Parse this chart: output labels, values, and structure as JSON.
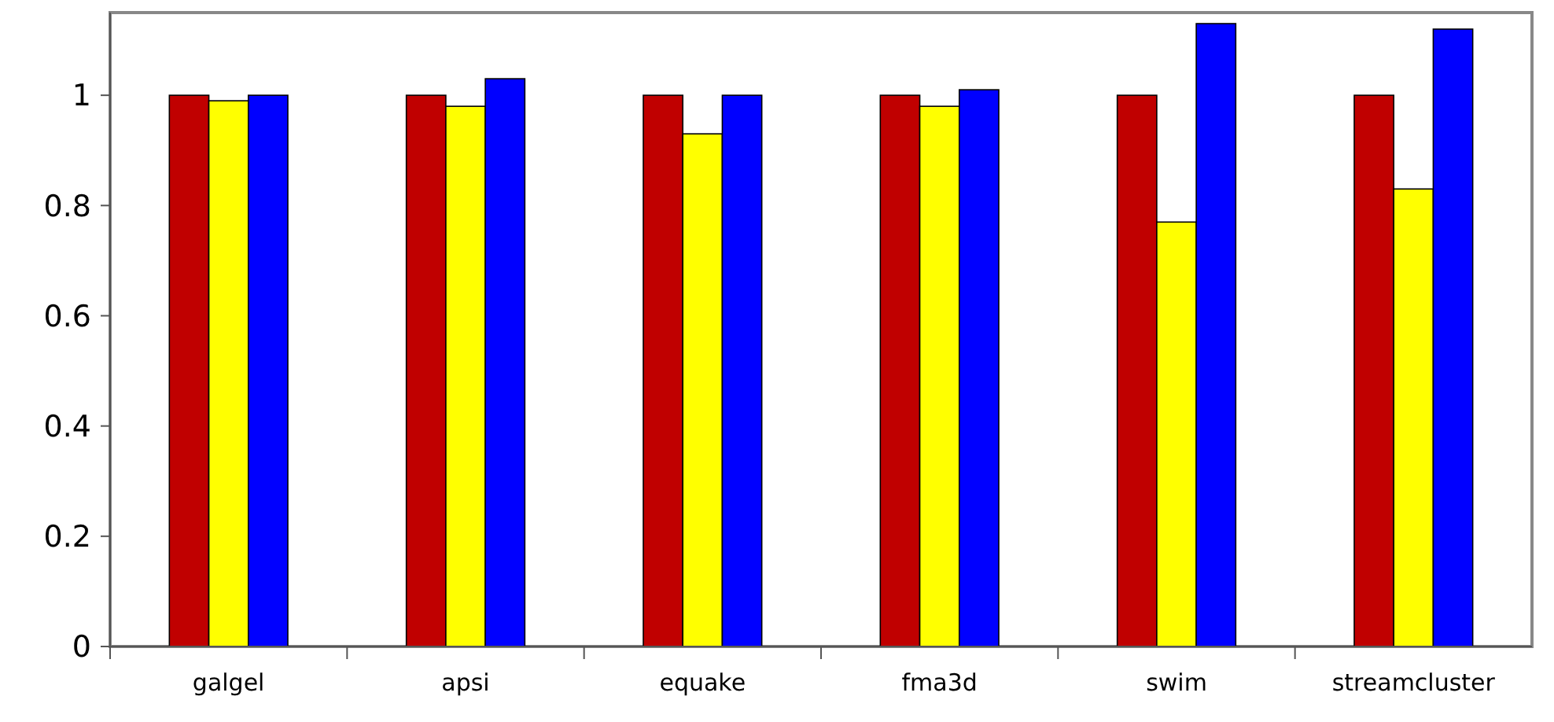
{
  "chart_data": {
    "type": "bar",
    "categories": [
      "galgel",
      "apsi",
      "equake",
      "fma3d",
      "swim",
      "streamcluster"
    ],
    "series": [
      {
        "color": "#c00000",
        "values": [
          1,
          1,
          1,
          1,
          1,
          1
        ]
      },
      {
        "color": "#ffff00",
        "values": [
          0.99,
          0.98,
          0.93,
          0.98,
          0.77,
          0.83
        ]
      },
      {
        "color": "#0000ff",
        "values": [
          1.0,
          1.03,
          1.0,
          1.01,
          1.13,
          1.12
        ]
      }
    ],
    "ylim": [
      0,
      1.15
    ],
    "yticks": [
      0,
      0.2,
      0.4,
      0.6,
      0.8,
      {
        "value": 1,
        "label": "1"
      }
    ],
    "grid": false
  }
}
